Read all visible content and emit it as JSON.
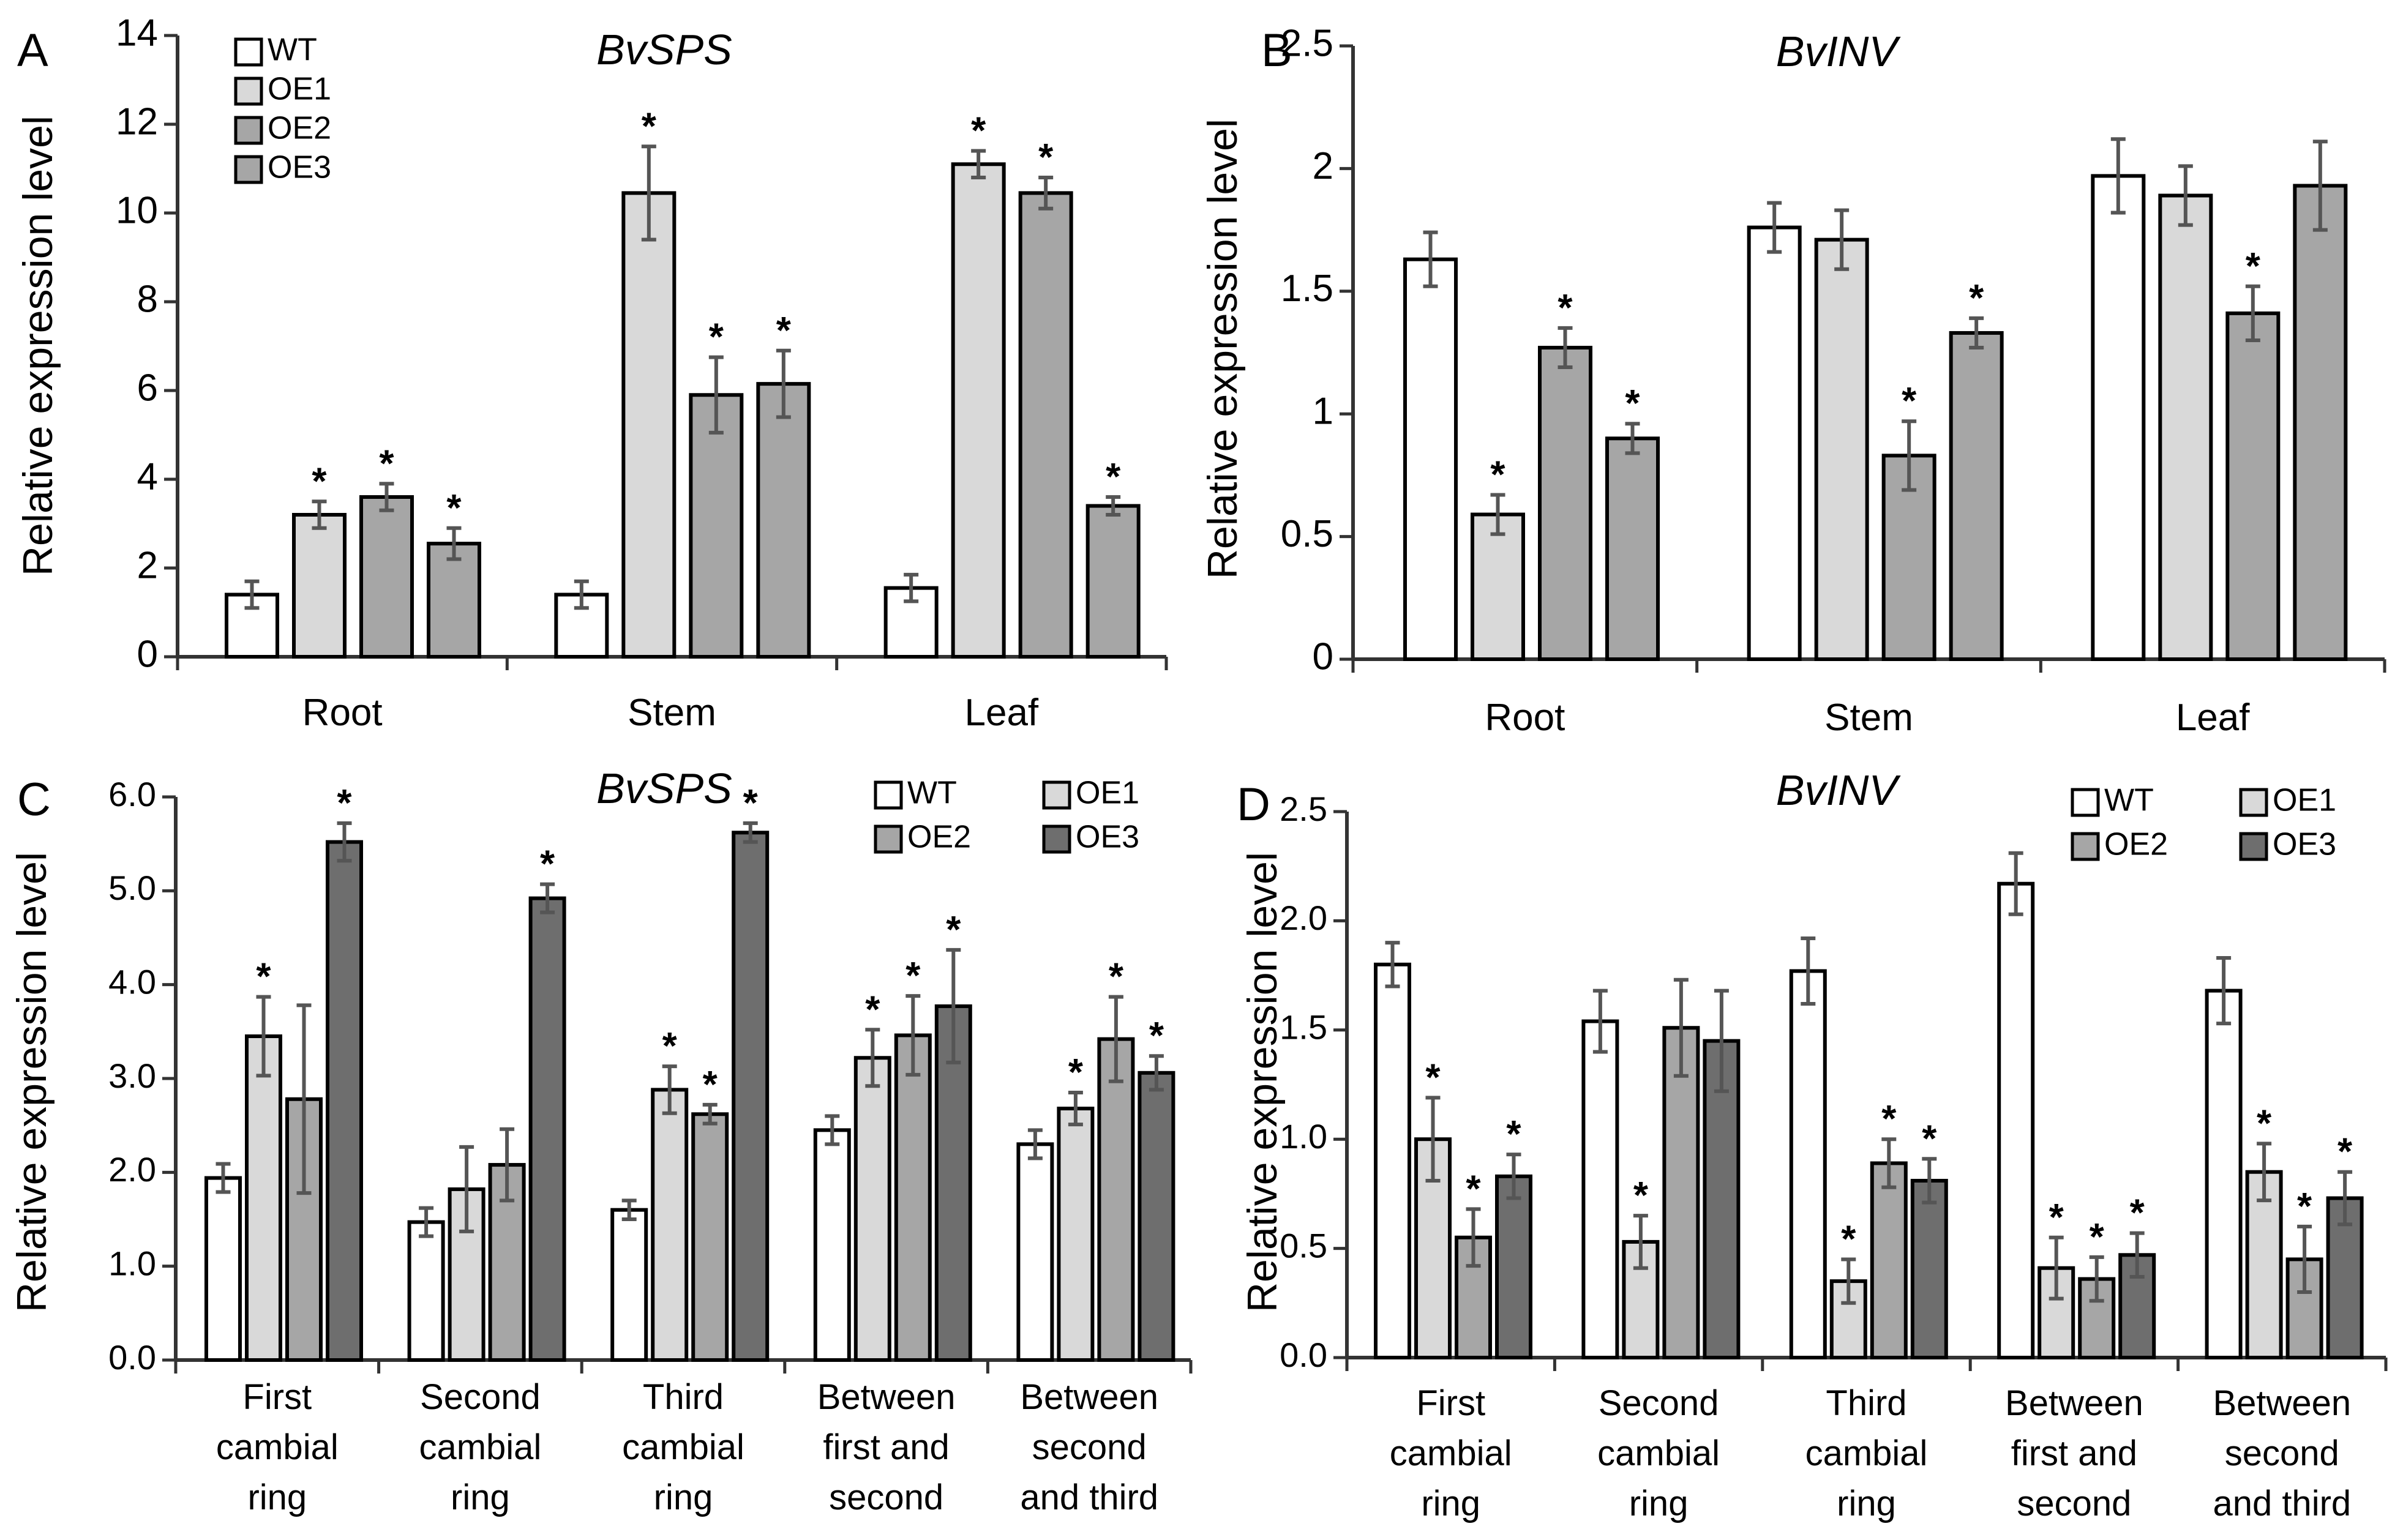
{
  "chart_data": [
    {
      "type": "bar",
      "panel_label": "A",
      "title": "BvSPS",
      "xlabel": "",
      "ylabel": "Relative expression level",
      "ylim": [
        0,
        14
      ],
      "yticks": [
        "0",
        "2",
        "4",
        "6",
        "8",
        "10",
        "12",
        "14"
      ],
      "categories": [
        [
          "Root"
        ],
        [
          "Stem"
        ],
        [
          "Leaf"
        ]
      ],
      "legend": {
        "placement": "top-left",
        "columns": 1
      },
      "series": [
        {
          "name": "WT",
          "color": "#ffffff",
          "values": [
            1.4,
            1.4,
            1.55
          ],
          "errors": [
            0.3,
            0.3,
            0.3
          ],
          "significant": [
            false,
            false,
            false
          ]
        },
        {
          "name": "OE1",
          "color": "#d9d9d9",
          "values": [
            3.2,
            10.45,
            11.1
          ],
          "errors": [
            0.3,
            1.05,
            0.3
          ],
          "significant": [
            true,
            true,
            true
          ]
        },
        {
          "name": "OE2",
          "color": "#a6a6a6",
          "values": [
            3.6,
            5.9,
            10.45
          ],
          "errors": [
            0.3,
            0.85,
            0.35
          ],
          "significant": [
            true,
            true,
            true
          ]
        },
        {
          "name": "OE3",
          "color": "#a6a6a6",
          "values": [
            2.55,
            6.15,
            3.4
          ],
          "errors": [
            0.35,
            0.75,
            0.2
          ],
          "significant": [
            true,
            true,
            true
          ]
        }
      ]
    },
    {
      "type": "bar",
      "panel_label": "B",
      "title": "BvINV",
      "xlabel": "",
      "ylabel": "Relative expression level",
      "ylim": [
        0,
        2.5
      ],
      "yticks": [
        "0",
        "0.5",
        "1",
        "1.5",
        "2",
        "2.5"
      ],
      "categories": [
        [
          "Root"
        ],
        [
          "Stem"
        ],
        [
          "Leaf"
        ]
      ],
      "legend": null,
      "series": [
        {
          "name": "WT",
          "color": "#ffffff",
          "values": [
            1.63,
            1.76,
            1.97
          ],
          "errors": [
            0.11,
            0.1,
            0.15
          ],
          "significant": [
            false,
            false,
            false
          ]
        },
        {
          "name": "OE1",
          "color": "#d9d9d9",
          "values": [
            0.59,
            1.71,
            1.89
          ],
          "errors": [
            0.08,
            0.12,
            0.12
          ],
          "significant": [
            true,
            false,
            false
          ]
        },
        {
          "name": "OE2",
          "color": "#a6a6a6",
          "values": [
            1.27,
            0.83,
            1.41
          ],
          "errors": [
            0.08,
            0.14,
            0.11
          ],
          "significant": [
            true,
            true,
            true
          ]
        },
        {
          "name": "OE3",
          "color": "#a6a6a6",
          "values": [
            0.9,
            1.33,
            1.93
          ],
          "errors": [
            0.06,
            0.06,
            0.18
          ],
          "significant": [
            true,
            true,
            false
          ]
        }
      ]
    },
    {
      "type": "bar",
      "panel_label": "C",
      "title": "BvSPS",
      "xlabel": "",
      "ylabel": "Relative expression level",
      "ylim": [
        0,
        6
      ],
      "yticks": [
        "0.0",
        "1.0",
        "2.0",
        "3.0",
        "4.0",
        "5.0",
        "6.0"
      ],
      "categories": [
        [
          "First",
          "cambial",
          "ring"
        ],
        [
          "Second",
          "cambial",
          "ring"
        ],
        [
          "Third",
          "cambial",
          "ring"
        ],
        [
          "Between",
          "first and",
          "second"
        ],
        [
          "Between",
          "second",
          "and third"
        ]
      ],
      "legend": {
        "placement": "top-right",
        "columns": 2
      },
      "series": [
        {
          "name": "WT",
          "color": "#ffffff",
          "values": [
            1.94,
            1.47,
            1.6,
            2.45,
            2.3
          ],
          "errors": [
            0.15,
            0.15,
            0.1,
            0.15,
            0.15
          ],
          "significant": [
            false,
            false,
            false,
            false,
            false
          ]
        },
        {
          "name": "OE1",
          "color": "#d9d9d9",
          "values": [
            3.45,
            1.82,
            2.88,
            3.22,
            2.68
          ],
          "errors": [
            0.42,
            0.45,
            0.25,
            0.3,
            0.17
          ],
          "significant": [
            true,
            false,
            true,
            true,
            true
          ]
        },
        {
          "name": "OE2",
          "color": "#a6a6a6",
          "values": [
            2.78,
            2.08,
            2.62,
            3.46,
            3.42
          ],
          "errors": [
            1.0,
            0.38,
            0.1,
            0.42,
            0.45
          ],
          "significant": [
            false,
            false,
            true,
            true,
            true
          ]
        },
        {
          "name": "OE3",
          "color": "#6e6e6e",
          "values": [
            5.52,
            4.92,
            5.62,
            3.77,
            3.06
          ],
          "errors": [
            0.2,
            0.15,
            0.1,
            0.6,
            0.18
          ],
          "significant": [
            true,
            true,
            true,
            true,
            true
          ]
        }
      ]
    },
    {
      "type": "bar",
      "panel_label": "D",
      "title": "BvINV",
      "xlabel": "",
      "ylabel": "Relative expression level",
      "ylim": [
        0,
        2.5
      ],
      "yticks": [
        "0.0",
        "0.5",
        "1.0",
        "1.5",
        "2.0",
        "2.5"
      ],
      "categories": [
        [
          "First",
          "cambial",
          "ring"
        ],
        [
          "Second",
          "cambial",
          "ring"
        ],
        [
          "Third",
          "cambial",
          "ring"
        ],
        [
          "Between",
          "first and",
          "second"
        ],
        [
          "Between",
          "second",
          "and third"
        ]
      ],
      "legend": {
        "placement": "top-right",
        "columns": 2
      },
      "series": [
        {
          "name": "WT",
          "color": "#ffffff",
          "values": [
            1.8,
            1.54,
            1.77,
            2.17,
            1.68
          ],
          "errors": [
            0.1,
            0.14,
            0.15,
            0.14,
            0.15
          ],
          "significant": [
            false,
            false,
            false,
            false,
            false
          ]
        },
        {
          "name": "OE1",
          "color": "#d9d9d9",
          "values": [
            1.0,
            0.53,
            0.35,
            0.41,
            0.85
          ],
          "errors": [
            0.19,
            0.12,
            0.1,
            0.14,
            0.13
          ],
          "significant": [
            true,
            true,
            true,
            true,
            true
          ]
        },
        {
          "name": "OE2",
          "color": "#a6a6a6",
          "values": [
            0.55,
            1.51,
            0.89,
            0.36,
            0.45
          ],
          "errors": [
            0.13,
            0.22,
            0.11,
            0.1,
            0.15
          ],
          "significant": [
            true,
            false,
            true,
            true,
            true
          ]
        },
        {
          "name": "OE3",
          "color": "#6e6e6e",
          "values": [
            0.83,
            1.45,
            0.81,
            0.47,
            0.73
          ],
          "errors": [
            0.1,
            0.23,
            0.1,
            0.1,
            0.12
          ],
          "significant": [
            true,
            false,
            true,
            true,
            true
          ]
        }
      ]
    }
  ]
}
